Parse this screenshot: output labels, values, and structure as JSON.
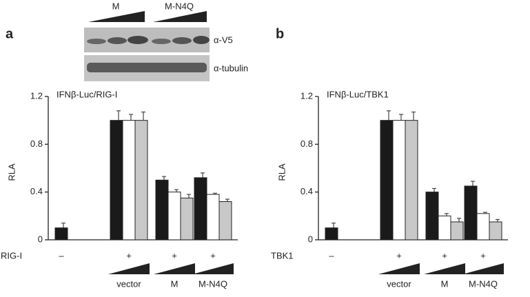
{
  "blot": {
    "groups": [
      "M",
      "M-N4Q"
    ],
    "rows": [
      "α-V5",
      "α-tubulin"
    ]
  },
  "chart_data": [
    {
      "type": "bar",
      "panel": "a",
      "title": "IFNβ-Luc/RIG-I",
      "ylabel": "RLA",
      "xlabel": "RIG-I",
      "categories": [
        "–",
        "+",
        "+",
        "+"
      ],
      "sublabels": [
        null,
        "vector",
        "M",
        "M-N4Q"
      ],
      "ylim": [
        0,
        1.2
      ],
      "yticks": [
        0,
        0.4,
        0.8,
        1.2
      ],
      "series": [
        {
          "color": "#1a1a1a",
          "values": [
            0.1,
            1.0,
            0.5,
            0.52
          ],
          "errors": [
            0.04,
            0.08,
            0.03,
            0.04
          ]
        },
        {
          "color": "#ffffff",
          "values": [
            null,
            1.0,
            0.4,
            0.38
          ],
          "errors": [
            null,
            0.05,
            0.02,
            0.01
          ]
        },
        {
          "color": "#c8c8c8",
          "values": [
            null,
            1.0,
            0.35,
            0.32
          ],
          "errors": [
            null,
            0.07,
            0.03,
            0.02
          ]
        }
      ]
    },
    {
      "type": "bar",
      "panel": "b",
      "title": "IFNβ-Luc/TBK1",
      "ylabel": "RLA",
      "xlabel": "TBK1",
      "categories": [
        "–",
        "+",
        "+",
        "+"
      ],
      "sublabels": [
        null,
        "vector",
        "M",
        "M-N4Q"
      ],
      "ylim": [
        0,
        1.2
      ],
      "yticks": [
        0,
        0.4,
        0.8,
        1.2
      ],
      "series": [
        {
          "color": "#1a1a1a",
          "values": [
            0.1,
            1.0,
            0.4,
            0.45
          ],
          "errors": [
            0.04,
            0.08,
            0.03,
            0.04
          ]
        },
        {
          "color": "#ffffff",
          "values": [
            null,
            1.0,
            0.2,
            0.22
          ],
          "errors": [
            null,
            0.05,
            0.02,
            0.01
          ]
        },
        {
          "color": "#c8c8c8",
          "values": [
            null,
            1.0,
            0.15,
            0.15
          ],
          "errors": [
            null,
            0.07,
            0.03,
            0.02
          ]
        }
      ]
    }
  ]
}
